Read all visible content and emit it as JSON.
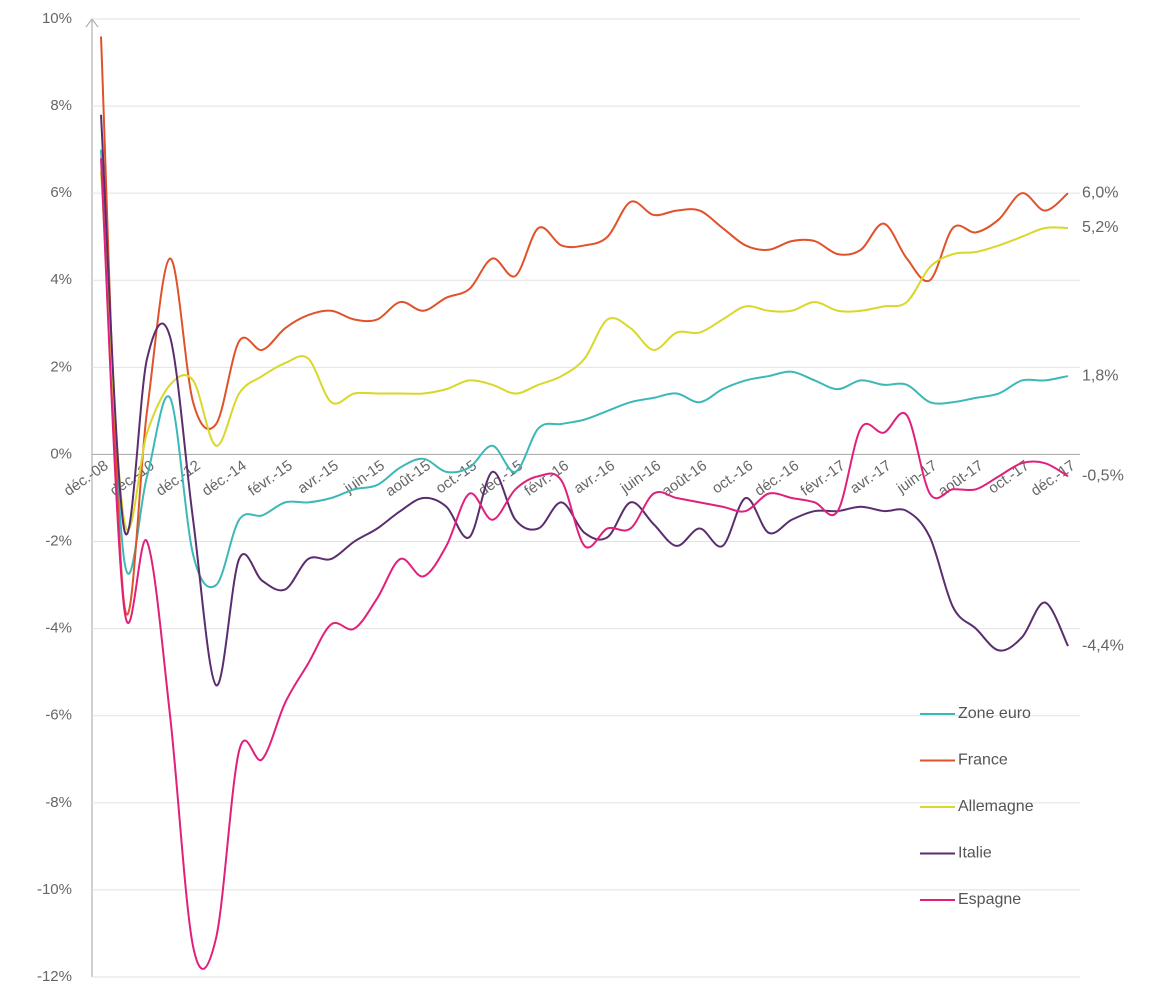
{
  "chart_data": {
    "type": "line",
    "categories": [
      "déc.-08",
      null,
      "déc.-10",
      null,
      "déc.-12",
      null,
      "déc.-14",
      null,
      "févr.-15",
      null,
      "avr.-15",
      null,
      "juin-15",
      null,
      "août-15",
      null,
      "oct.-15",
      null,
      "déc.-15",
      null,
      "févr.-16",
      null,
      "avr.-16",
      null,
      "juin-16",
      null,
      "août-16",
      null,
      "oct.-16",
      null,
      "déc.-16",
      null,
      "févr.-17",
      null,
      "avr.-17",
      null,
      "juin-17",
      null,
      "août-17",
      null,
      "oct.-17",
      null,
      "déc.-17"
    ],
    "ylim": [
      -12,
      10
    ],
    "yticks": [
      {
        "value": -12,
        "label": "-12%"
      },
      {
        "value": -10,
        "label": "-10%"
      },
      {
        "value": -8,
        "label": "-8%"
      },
      {
        "value": -6,
        "label": "-6%"
      },
      {
        "value": -4,
        "label": "-4%"
      },
      {
        "value": -2,
        "label": "-2%"
      },
      {
        "value": 0,
        "label": "0%"
      },
      {
        "value": 2,
        "label": "2%"
      },
      {
        "value": 4,
        "label": "4%"
      },
      {
        "value": 6,
        "label": "6%"
      },
      {
        "value": 8,
        "label": "8%"
      },
      {
        "value": 10,
        "label": "10%"
      }
    ],
    "grid": true,
    "legend": "lower right",
    "series": [
      {
        "name": "Zone euro",
        "color": "#3db8b8",
        "end_label": "1,8%",
        "values": [
          7.0,
          -2.4,
          -0.5,
          1.3,
          -2.3,
          -3.0,
          -1.5,
          -1.4,
          -1.1,
          -1.1,
          -1.0,
          -0.8,
          -0.7,
          -0.3,
          -0.1,
          -0.4,
          -0.3,
          0.2,
          -0.4,
          0.6,
          0.7,
          0.8,
          1.0,
          1.2,
          1.3,
          1.4,
          1.2,
          1.5,
          1.7,
          1.8,
          1.9,
          1.7,
          1.5,
          1.7,
          1.6,
          1.6,
          1.2,
          1.2,
          1.3,
          1.4,
          1.7,
          1.7,
          1.8
        ]
      },
      {
        "name": "France",
        "color": "#e0522a",
        "end_label": "6,0%",
        "values": [
          9.6,
          -3.4,
          1.0,
          4.5,
          1.2,
          0.7,
          2.6,
          2.4,
          2.9,
          3.2,
          3.3,
          3.1,
          3.1,
          3.5,
          3.3,
          3.6,
          3.8,
          4.5,
          4.1,
          5.2,
          4.8,
          4.8,
          5.0,
          5.8,
          5.5,
          5.6,
          5.6,
          5.2,
          4.8,
          4.7,
          4.9,
          4.9,
          4.6,
          4.7,
          5.3,
          4.5,
          4.0,
          5.2,
          5.1,
          5.4,
          6.0,
          5.6,
          6.0
        ]
      },
      {
        "name": "Allemagne",
        "color": "#d8d82a",
        "end_label": "5,2%",
        "values": [
          6.5,
          -1.5,
          0.5,
          1.6,
          1.7,
          0.2,
          1.4,
          1.8,
          2.1,
          2.2,
          1.2,
          1.4,
          1.4,
          1.4,
          1.4,
          1.5,
          1.7,
          1.6,
          1.4,
          1.6,
          1.8,
          2.2,
          3.1,
          2.9,
          2.4,
          2.8,
          2.8,
          3.1,
          3.4,
          3.3,
          3.3,
          3.5,
          3.3,
          3.3,
          3.4,
          3.5,
          4.3,
          4.6,
          4.65,
          4.8,
          5.0,
          5.2,
          5.2
        ]
      },
      {
        "name": "Italie",
        "color": "#5a2d6e",
        "end_label": "-4,4%",
        "label_color": "#1f3a6e",
        "values": [
          7.8,
          -1.7,
          2.2,
          2.7,
          -1.5,
          -5.3,
          -2.4,
          -2.9,
          -3.1,
          -2.4,
          -2.4,
          -2.0,
          -1.7,
          -1.3,
          -1.0,
          -1.2,
          -1.9,
          -0.4,
          -1.5,
          -1.7,
          -1.1,
          -1.8,
          -1.9,
          -1.1,
          -1.6,
          -2.1,
          -1.7,
          -2.1,
          -1.0,
          -1.8,
          -1.5,
          -1.3,
          -1.3,
          -1.2,
          -1.3,
          -1.3,
          -1.9,
          -3.5,
          -4.0,
          -4.5,
          -4.2,
          -3.4,
          -4.4
        ]
      },
      {
        "name": "Espagne",
        "color": "#e0207a",
        "end_label": "-0,5%",
        "values": [
          6.8,
          -3.5,
          -2.0,
          -6.0,
          -11.3,
          -11.1,
          -6.8,
          -7.0,
          -5.7,
          -4.8,
          -3.9,
          -4.0,
          -3.3,
          -2.4,
          -2.8,
          -2.1,
          -0.9,
          -1.5,
          -0.8,
          -0.5,
          -0.6,
          -2.1,
          -1.7,
          -1.7,
          -0.9,
          -1.0,
          -1.1,
          -1.2,
          -1.3,
          -0.9,
          -1.0,
          -1.1,
          -1.3,
          0.6,
          0.5,
          0.9,
          -0.9,
          -0.8,
          -0.8,
          -0.5,
          -0.2,
          -0.2,
          -0.5
        ]
      }
    ]
  }
}
